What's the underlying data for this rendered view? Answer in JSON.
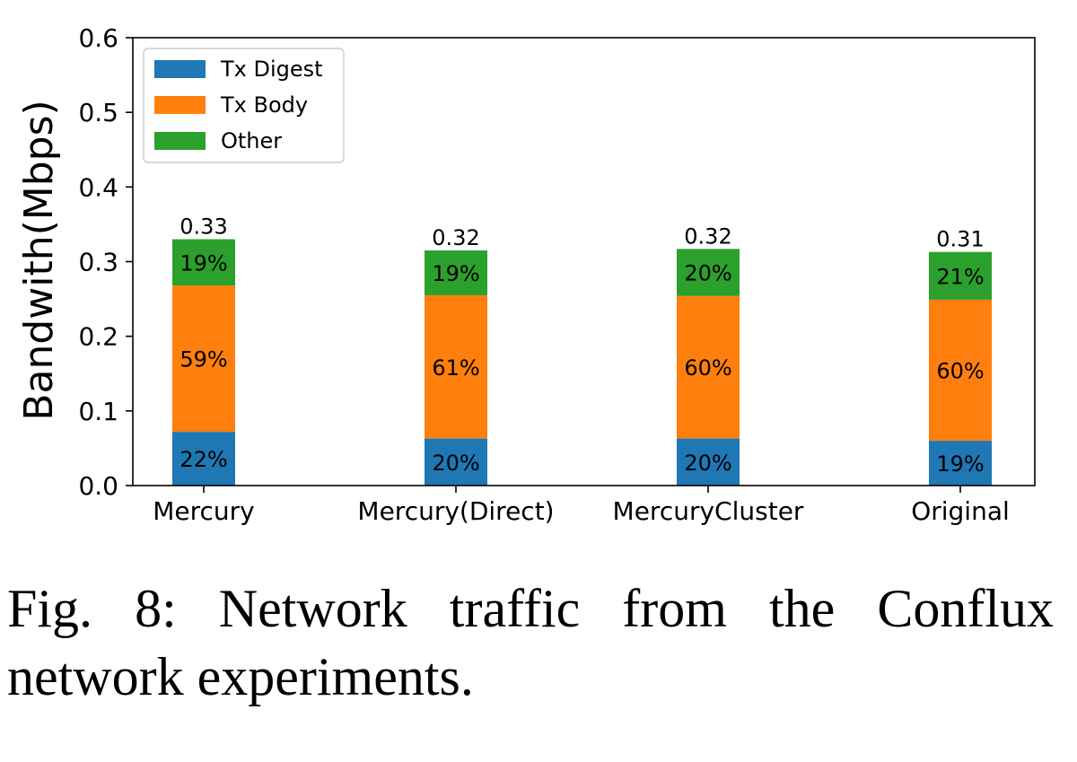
{
  "caption": "Fig. 8: Network traffic from the Conflux network experiments.",
  "chart_data": {
    "type": "bar",
    "stacked": true,
    "categories": [
      "Mercury",
      "Mercury(Direct)",
      "MercuryCluster",
      "Original"
    ],
    "ylabel": "Bandwith(Mbps)",
    "xlabel": "",
    "ylim": [
      0,
      0.6
    ],
    "yticks": [
      "0.0",
      "0.1",
      "0.2",
      "0.3",
      "0.4",
      "0.5",
      "0.6"
    ],
    "grid": false,
    "legend_position": "top-left",
    "totals": [
      "0.33",
      "0.32",
      "0.32",
      "0.31"
    ],
    "total_values": [
      0.33,
      0.315,
      0.317,
      0.313
    ],
    "series": [
      {
        "name": "Tx Digest",
        "color": "#1f77b4",
        "values": [
          0.072,
          0.063,
          0.063,
          0.06
        ],
        "labels": [
          "22%",
          "20%",
          "20%",
          "19%"
        ]
      },
      {
        "name": "Tx Body",
        "color": "#ff7f0e",
        "values": [
          0.196,
          0.192,
          0.191,
          0.189
        ],
        "labels": [
          "59%",
          "61%",
          "60%",
          "60%"
        ]
      },
      {
        "name": "Other",
        "color": "#2ca02c",
        "values": [
          0.062,
          0.06,
          0.063,
          0.064
        ],
        "labels": [
          "19%",
          "19%",
          "20%",
          "21%"
        ]
      }
    ]
  }
}
